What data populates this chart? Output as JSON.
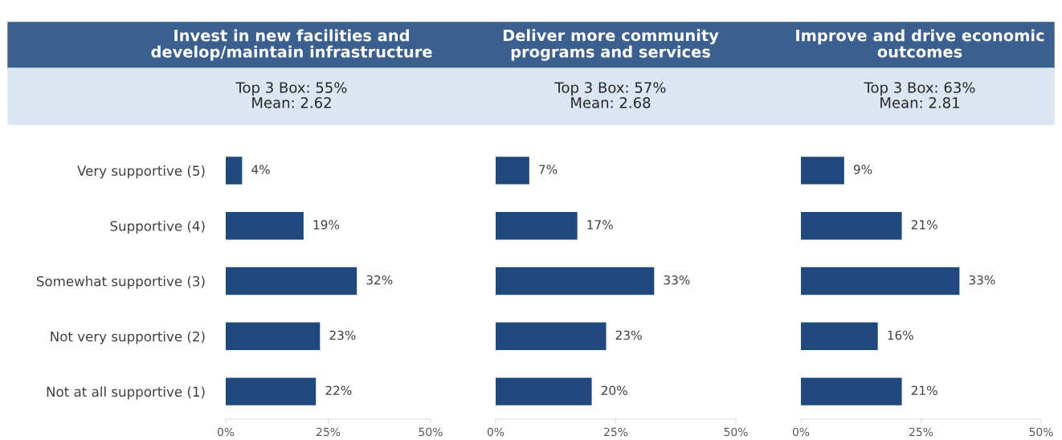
{
  "chart_data": [
    {
      "type": "bar",
      "orientation": "horizontal",
      "title": "Invest in new facilities and\ndevelop/maintain infrastructure",
      "subtitle": "Top 3 Box: 55%\nMean: 2.62",
      "categories": [
        "Very supportive (5)",
        "Supportive (4)",
        "Somewhat supportive (3)",
        "Not very supportive (2)",
        "Not at all supportive (1)"
      ],
      "values": [
        4,
        19,
        32,
        23,
        22
      ],
      "value_labels": [
        "4%",
        "19%",
        "32%",
        "23%",
        "22%"
      ],
      "color": "#1f497d",
      "xlim": [
        0,
        50
      ],
      "xticks": [
        {
          "value": 0,
          "label": "0%"
        },
        {
          "value": 25,
          "label": "25%"
        },
        {
          "value": 50,
          "label": "50%"
        }
      ],
      "grid": false
    },
    {
      "type": "bar",
      "orientation": "horizontal",
      "title": "Deliver more community\nprograms and services",
      "subtitle": "Top 3 Box: 57%\nMean: 2.68",
      "categories": [
        null,
        null,
        null,
        null,
        null
      ],
      "values": [
        7,
        17,
        33,
        23,
        20
      ],
      "value_labels": [
        "7%",
        "17%",
        "33%",
        "23%",
        "20%"
      ],
      "color": "#1f497d",
      "xlim": [
        0,
        50
      ],
      "xticks": [
        {
          "value": 0,
          "label": "0%"
        },
        {
          "value": 25,
          "label": "25%"
        },
        {
          "value": 50,
          "label": "50%"
        }
      ],
      "grid": false,
      "tick_labels": "x"
    },
    {
      "type": "bar",
      "orientation": "horizontal",
      "title": "Improve and drive economic\noutcomes",
      "subtitle": "Top 3 Box: 63%\nMean: 2.81",
      "categories": [
        null,
        null,
        null,
        null,
        null
      ],
      "values": [
        9,
        21,
        33,
        16,
        21
      ],
      "value_labels": [
        "9%",
        "21%",
        "33%",
        "16%",
        "21%"
      ],
      "color": "#1f497d",
      "xlim": [
        0,
        50
      ],
      "xticks": [
        {
          "value": 0,
          "label": "0%"
        },
        {
          "value": 25,
          "label": "25%"
        },
        {
          "value": 50,
          "label": "50%"
        }
      ],
      "grid": false,
      "tick_labels": "x"
    }
  ]
}
